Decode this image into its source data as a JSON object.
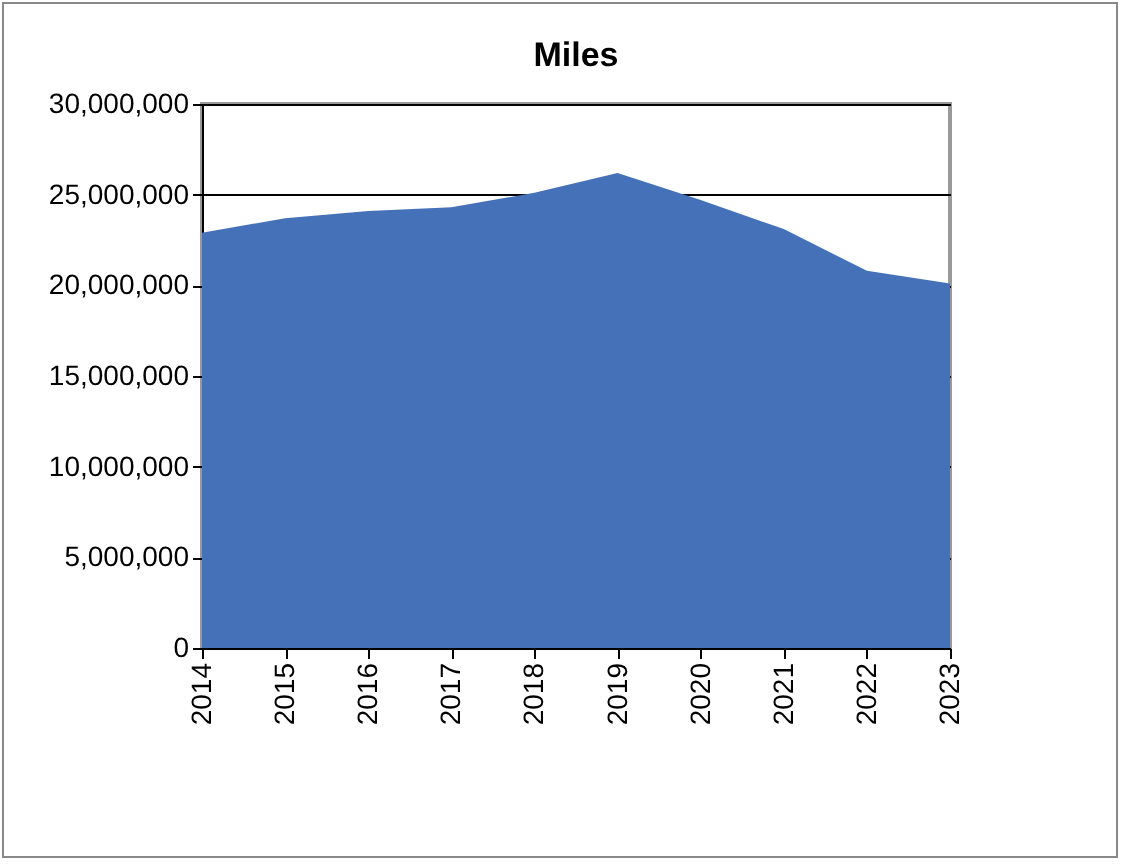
{
  "chart_data": {
    "type": "area",
    "title": "Miles",
    "categories": [
      "2014",
      "2015",
      "2016",
      "2017",
      "2018",
      "2019",
      "2020",
      "2021",
      "2022",
      "2023"
    ],
    "series": [
      {
        "color": "#4571b9",
        "values": [
          22900000,
          23700000,
          24100000,
          24300000,
          25100000,
          26200000,
          24700000,
          23100000,
          20800000,
          20100000
        ]
      }
    ],
    "ylim": [
      0,
      30000000
    ],
    "yticks": [
      0,
      {
        "value": 5000000,
        "label": "5,000,000"
      },
      {
        "value": 10000000,
        "label": "10,000,000"
      },
      {
        "value": 15000000,
        "label": "15,000,000"
      },
      {
        "value": 20000000,
        "label": "20,000,000"
      },
      {
        "value": 25000000,
        "label": "25,000,000"
      },
      {
        "value": 30000000,
        "label": "30,000,000"
      }
    ],
    "grid": "y"
  }
}
